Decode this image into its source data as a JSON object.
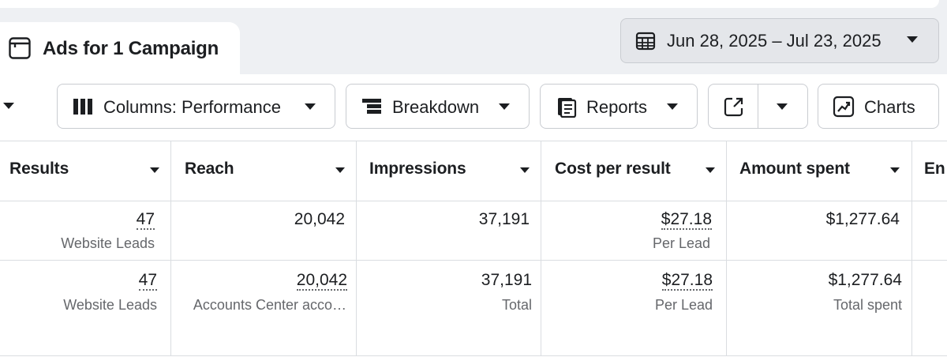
{
  "header": {
    "tab_title": "Ads for 1 Campaign",
    "date_range": "Jun 28, 2025 – Jul 23, 2025"
  },
  "toolbar": {
    "columns_label": "Columns: Performance",
    "breakdown_label": "Breakdown",
    "reports_label": "Reports",
    "charts_label": "Charts"
  },
  "table": {
    "columns": [
      "Results",
      "Reach",
      "Impressions",
      "Cost per result",
      "Amount spent",
      "En"
    ],
    "rows": [
      {
        "results": "47",
        "results_sub": "Website Leads",
        "reach": "20,042",
        "reach_sub": "",
        "impressions": "37,191",
        "impressions_sub": "",
        "cost": "$27.18",
        "cost_sub": "Per Lead",
        "spent": "$1,277.64",
        "spent_sub": ""
      },
      {
        "results": "47",
        "results_sub": "Website Leads",
        "reach": "20,042",
        "reach_sub": "Accounts Center acco…",
        "impressions": "37,191",
        "impressions_sub": "Total",
        "cost": "$27.18",
        "cost_sub": "Per Lead",
        "spent": "$1,277.64",
        "spent_sub": "Total spent"
      }
    ]
  },
  "colors": {
    "background": "#eef0f3",
    "text": "#1c1e21",
    "secondary_text": "#65676b",
    "border": "#c9ccd1"
  },
  "icons": [
    "tab-table-icon",
    "calendar-icon",
    "columns-icon",
    "breakdown-icon",
    "reports-icon",
    "export-icon",
    "charts-icon"
  ]
}
